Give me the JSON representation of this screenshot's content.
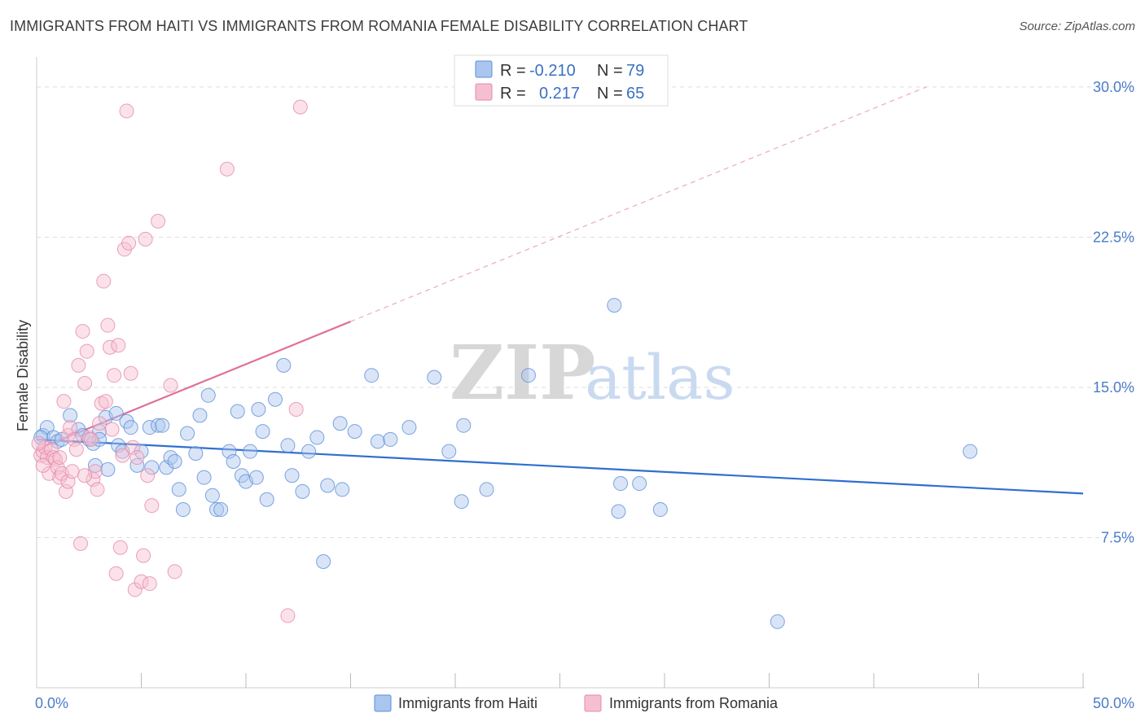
{
  "title": "IMMIGRANTS FROM HAITI VS IMMIGRANTS FROM ROMANIA FEMALE DISABILITY CORRELATION CHART",
  "source": "Source: ZipAtlas.com",
  "watermark": {
    "zip": "ZIP",
    "atlas": "atlas"
  },
  "colors": {
    "haiti": "#5b8fd9",
    "haiti_fill": "#aac6ee",
    "haiti_line": "#2f6fd0",
    "romania": "#e58aaa",
    "romania_fill": "#f6bfd1",
    "romania_line": "#e0709a",
    "grid": "#dddddd",
    "axis_label": "#4a7cc9"
  },
  "legend": {
    "haiti": {
      "r_label": "R =",
      "r_value": "-0.210",
      "n_label": "N =",
      "n_value": "79"
    },
    "romania": {
      "r_label": "R =",
      "r_value": "0.217",
      "n_label": "N =",
      "n_value": "65"
    }
  },
  "chart_data": {
    "type": "scatter",
    "title": "IMMIGRANTS FROM HAITI VS IMMIGRANTS FROM ROMANIA FEMALE DISABILITY CORRELATION CHART",
    "xlabel": "",
    "ylabel": "Female Disability",
    "xlim": [
      0,
      50
    ],
    "ylim": [
      0,
      31.5
    ],
    "x_tick_labels": [
      {
        "value": 0,
        "label": "0.0%"
      },
      {
        "value": 50,
        "label": "50.0%"
      }
    ],
    "y_tick_labels": [
      {
        "value": 7.5,
        "label": "7.5%"
      },
      {
        "value": 15,
        "label": "15.0%"
      },
      {
        "value": 22.5,
        "label": "22.5%"
      },
      {
        "value": 30,
        "label": "30.0%"
      }
    ],
    "x_minor_ticks": [
      5,
      10,
      15,
      20,
      25,
      30,
      35,
      40,
      45,
      50
    ],
    "legend_position": "bottom",
    "series": [
      {
        "name": "Immigrants from Haiti",
        "color": "#5b8fd9",
        "trend": {
          "x": [
            0,
            50
          ],
          "y": [
            12.4,
            9.7
          ],
          "solid_to_x": 50
        },
        "points": [
          [
            0.3,
            12.6
          ],
          [
            0.5,
            13.0
          ],
          [
            0.8,
            12.5
          ],
          [
            1.0,
            12.3
          ],
          [
            1.2,
            12.4
          ],
          [
            1.6,
            13.6
          ],
          [
            2.0,
            12.9
          ],
          [
            2.2,
            12.6
          ],
          [
            2.5,
            12.4
          ],
          [
            2.7,
            12.2
          ],
          [
            2.8,
            11.1
          ],
          [
            3.0,
            12.8
          ],
          [
            3.0,
            12.4
          ],
          [
            3.3,
            13.5
          ],
          [
            3.4,
            10.9
          ],
          [
            3.8,
            13.7
          ],
          [
            3.9,
            12.1
          ],
          [
            4.1,
            11.8
          ],
          [
            4.3,
            13.3
          ],
          [
            4.5,
            13.0
          ],
          [
            4.8,
            11.1
          ],
          [
            5.0,
            11.8
          ],
          [
            5.4,
            13.0
          ],
          [
            5.5,
            11.0
          ],
          [
            5.8,
            13.1
          ],
          [
            6.0,
            13.1
          ],
          [
            6.2,
            11.0
          ],
          [
            6.4,
            11.5
          ],
          [
            6.6,
            11.3
          ],
          [
            6.8,
            9.9
          ],
          [
            7.0,
            8.9
          ],
          [
            7.2,
            12.7
          ],
          [
            7.6,
            11.7
          ],
          [
            7.8,
            13.6
          ],
          [
            8.0,
            10.5
          ],
          [
            8.2,
            14.6
          ],
          [
            8.4,
            9.6
          ],
          [
            8.6,
            8.9
          ],
          [
            8.8,
            8.9
          ],
          [
            9.2,
            11.8
          ],
          [
            9.4,
            11.3
          ],
          [
            9.6,
            13.8
          ],
          [
            9.8,
            10.6
          ],
          [
            10.0,
            10.3
          ],
          [
            10.2,
            11.8
          ],
          [
            10.5,
            10.5
          ],
          [
            10.6,
            13.9
          ],
          [
            10.8,
            12.8
          ],
          [
            11.0,
            9.4
          ],
          [
            11.4,
            14.4
          ],
          [
            11.8,
            16.1
          ],
          [
            12.0,
            12.1
          ],
          [
            12.2,
            10.6
          ],
          [
            12.7,
            9.8
          ],
          [
            13.0,
            11.8
          ],
          [
            13.4,
            12.5
          ],
          [
            13.7,
            6.3
          ],
          [
            13.9,
            10.1
          ],
          [
            14.5,
            13.2
          ],
          [
            14.6,
            9.9
          ],
          [
            15.2,
            12.8
          ],
          [
            16.0,
            15.6
          ],
          [
            16.3,
            12.3
          ],
          [
            16.9,
            12.4
          ],
          [
            17.8,
            13.0
          ],
          [
            19.0,
            15.5
          ],
          [
            19.7,
            11.8
          ],
          [
            20.3,
            9.3
          ],
          [
            20.4,
            13.1
          ],
          [
            21.5,
            9.9
          ],
          [
            23.5,
            15.6
          ],
          [
            27.6,
            19.1
          ],
          [
            27.8,
            8.8
          ],
          [
            27.9,
            10.2
          ],
          [
            28.8,
            10.2
          ],
          [
            29.8,
            8.9
          ],
          [
            35.4,
            3.3
          ],
          [
            44.6,
            11.8
          ],
          [
            0.2,
            12.5
          ]
        ]
      },
      {
        "name": "Immigrants from Romania",
        "color": "#e58aaa",
        "trend": {
          "x": [
            0,
            42.5
          ],
          "y": [
            11.9,
            30.0
          ],
          "solid_to_x": 15
        },
        "points": [
          [
            0.2,
            11.6
          ],
          [
            0.3,
            11.8
          ],
          [
            0.4,
            12.0
          ],
          [
            0.5,
            11.5
          ],
          [
            0.6,
            10.7
          ],
          [
            0.7,
            11.9
          ],
          [
            0.8,
            11.5
          ],
          [
            0.9,
            11.4
          ],
          [
            1.0,
            11.0
          ],
          [
            1.1,
            11.5
          ],
          [
            1.1,
            10.5
          ],
          [
            1.2,
            10.7
          ],
          [
            1.3,
            14.3
          ],
          [
            1.4,
            9.8
          ],
          [
            1.5,
            12.6
          ],
          [
            1.5,
            10.3
          ],
          [
            1.6,
            13.0
          ],
          [
            1.7,
            10.8
          ],
          [
            1.8,
            12.4
          ],
          [
            1.9,
            11.9
          ],
          [
            2.0,
            16.1
          ],
          [
            2.1,
            7.2
          ],
          [
            2.2,
            17.8
          ],
          [
            2.3,
            15.2
          ],
          [
            2.4,
            16.8
          ],
          [
            2.5,
            12.5
          ],
          [
            2.6,
            12.4
          ],
          [
            2.7,
            10.4
          ],
          [
            2.8,
            10.8
          ],
          [
            2.9,
            9.9
          ],
          [
            3.0,
            13.2
          ],
          [
            3.1,
            14.2
          ],
          [
            3.2,
            20.3
          ],
          [
            3.3,
            14.3
          ],
          [
            3.4,
            18.1
          ],
          [
            3.5,
            17.0
          ],
          [
            3.6,
            12.9
          ],
          [
            3.7,
            15.6
          ],
          [
            3.8,
            5.7
          ],
          [
            3.9,
            17.1
          ],
          [
            4.0,
            7.0
          ],
          [
            4.1,
            11.6
          ],
          [
            4.2,
            21.9
          ],
          [
            4.3,
            28.8
          ],
          [
            4.4,
            22.2
          ],
          [
            4.5,
            15.7
          ],
          [
            4.6,
            12.0
          ],
          [
            4.7,
            4.9
          ],
          [
            4.8,
            11.5
          ],
          [
            5.0,
            5.3
          ],
          [
            5.1,
            6.6
          ],
          [
            5.2,
            22.4
          ],
          [
            5.3,
            10.6
          ],
          [
            5.4,
            5.2
          ],
          [
            5.5,
            9.1
          ],
          [
            5.8,
            23.3
          ],
          [
            6.4,
            15.1
          ],
          [
            6.6,
            5.8
          ],
          [
            9.1,
            25.9
          ],
          [
            12.0,
            3.6
          ],
          [
            12.4,
            13.9
          ],
          [
            12.6,
            29.0
          ],
          [
            0.1,
            12.2
          ],
          [
            0.3,
            11.1
          ],
          [
            2.3,
            10.6
          ]
        ]
      }
    ]
  },
  "bottom_legend": {
    "haiti_label": "Immigrants from Haiti",
    "romania_label": "Immigrants from Romania"
  }
}
